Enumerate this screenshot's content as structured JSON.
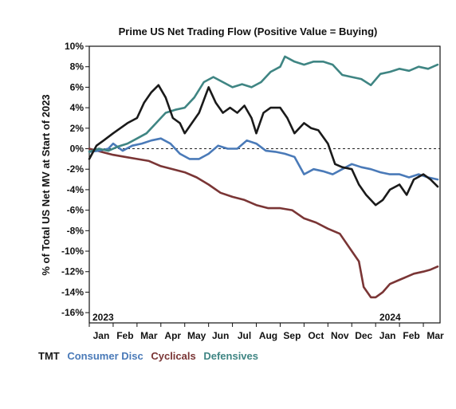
{
  "chart_data": {
    "type": "line",
    "title": "Prime US Net Trading Flow (Positive Value = Buying)",
    "ylabel": "% of Total US Net MV at Start of 2023",
    "xlabel": "",
    "ylim": [
      -17,
      10
    ],
    "yticks": [
      10,
      8,
      6,
      4,
      2,
      0,
      -2,
      -4,
      -6,
      -8,
      -10,
      -12,
      -14,
      -16
    ],
    "ytick_labels": [
      "10%",
      "8%",
      "6%",
      "4%",
      "2%",
      "0%",
      "-2%",
      "-4%",
      "-6%",
      "-8%",
      "-10%",
      "-12%",
      "-14%",
      "-16%"
    ],
    "month_labels": [
      "Jan",
      "Feb",
      "Mar",
      "Apr",
      "May",
      "Jun",
      "Jul",
      "Aug",
      "Sep",
      "Oct",
      "Nov",
      "Dec",
      "Jan",
      "Feb",
      "Mar"
    ],
    "year_labels": [
      "2023",
      "2024"
    ],
    "zero_line": "dashed",
    "grid": false,
    "legend_position": "bottom-left",
    "x_unit": "months since start of 2023",
    "xlim": [
      0,
      14.7
    ],
    "series": [
      {
        "name": "TMT",
        "color": "#1a1a1a",
        "x": [
          0,
          0.3,
          0.6,
          1.0,
          1.3,
          1.6,
          2.0,
          2.3,
          2.6,
          2.9,
          3.2,
          3.5,
          3.8,
          4.0,
          4.3,
          4.6,
          5.0,
          5.3,
          5.6,
          5.9,
          6.2,
          6.5,
          6.8,
          7.0,
          7.3,
          7.6,
          8.0,
          8.3,
          8.6,
          9.0,
          9.3,
          9.6,
          10.0,
          10.3,
          10.6,
          11.0,
          11.3,
          11.6,
          12.0,
          12.3,
          12.6,
          13.0,
          13.3,
          13.6,
          14.0,
          14.3,
          14.6
        ],
        "y": [
          -1.0,
          0.3,
          0.8,
          1.5,
          2.0,
          2.5,
          3.0,
          4.5,
          5.5,
          6.2,
          5.0,
          3.0,
          2.5,
          1.5,
          2.5,
          3.5,
          6.0,
          4.5,
          3.5,
          4.0,
          3.5,
          4.2,
          3.0,
          1.5,
          3.5,
          4.0,
          4.0,
          3.0,
          1.5,
          2.5,
          2.0,
          1.8,
          0.5,
          -1.5,
          -1.8,
          -2.0,
          -3.5,
          -4.5,
          -5.5,
          -5.0,
          -4.0,
          -3.5,
          -4.5,
          -3.0,
          -2.5,
          -3.0,
          -3.7
        ]
      },
      {
        "name": "Consumer Disc",
        "color": "#4a7ab8",
        "x": [
          0,
          0.4,
          0.8,
          1.0,
          1.4,
          1.8,
          2.2,
          2.6,
          3.0,
          3.4,
          3.8,
          4.2,
          4.6,
          5.0,
          5.4,
          5.8,
          6.2,
          6.6,
          7.0,
          7.4,
          7.8,
          8.2,
          8.6,
          9.0,
          9.4,
          9.8,
          10.2,
          10.6,
          11.0,
          11.4,
          11.8,
          12.2,
          12.6,
          13.0,
          13.4,
          13.8,
          14.2,
          14.6
        ],
        "y": [
          -0.3,
          -0.2,
          0.0,
          0.5,
          -0.2,
          0.3,
          0.5,
          0.8,
          1.0,
          0.5,
          -0.5,
          -1.0,
          -1.0,
          -0.5,
          0.3,
          0.0,
          0.0,
          0.8,
          0.5,
          -0.2,
          -0.3,
          -0.5,
          -0.8,
          -2.5,
          -2.0,
          -2.2,
          -2.5,
          -2.0,
          -1.5,
          -1.8,
          -2.0,
          -2.3,
          -2.5,
          -2.5,
          -2.8,
          -2.5,
          -2.8,
          -3.0
        ]
      },
      {
        "name": "Cyclicals",
        "color": "#7a3535",
        "x": [
          0,
          0.5,
          1.0,
          1.5,
          2.0,
          2.5,
          3.0,
          3.5,
          4.0,
          4.5,
          5.0,
          5.5,
          6.0,
          6.5,
          7.0,
          7.5,
          8.0,
          8.5,
          9.0,
          9.5,
          10.0,
          10.5,
          11.0,
          11.3,
          11.5,
          11.8,
          12.0,
          12.3,
          12.6,
          13.0,
          13.3,
          13.6,
          14.0,
          14.3,
          14.6
        ],
        "y": [
          0.0,
          -0.3,
          -0.6,
          -0.8,
          -1.0,
          -1.2,
          -1.7,
          -2.0,
          -2.3,
          -2.8,
          -3.5,
          -4.3,
          -4.7,
          -5.0,
          -5.5,
          -5.8,
          -5.8,
          -6.0,
          -6.8,
          -7.2,
          -7.8,
          -8.3,
          -10.0,
          -11.0,
          -13.5,
          -14.5,
          -14.5,
          -14.0,
          -13.2,
          -12.8,
          -12.5,
          -12.2,
          -12.0,
          -11.8,
          -11.5
        ]
      },
      {
        "name": "Defensives",
        "color": "#3f8583",
        "x": [
          0,
          0.4,
          0.8,
          1.2,
          1.6,
          2.0,
          2.4,
          2.8,
          3.2,
          3.6,
          4.0,
          4.4,
          4.8,
          5.2,
          5.6,
          6.0,
          6.4,
          6.8,
          7.2,
          7.6,
          8.0,
          8.2,
          8.6,
          9.0,
          9.4,
          9.8,
          10.2,
          10.6,
          11.0,
          11.4,
          11.8,
          12.2,
          12.6,
          13.0,
          13.4,
          13.8,
          14.2,
          14.6
        ],
        "y": [
          -0.3,
          0.0,
          -0.2,
          0.2,
          0.5,
          1.0,
          1.5,
          2.5,
          3.5,
          3.8,
          4.0,
          5.0,
          6.5,
          7.0,
          6.5,
          6.0,
          6.3,
          6.0,
          6.5,
          7.5,
          8.0,
          9.0,
          8.5,
          8.2,
          8.5,
          8.5,
          8.2,
          7.2,
          7.0,
          6.8,
          6.2,
          7.3,
          7.5,
          7.8,
          7.6,
          8.0,
          7.8,
          8.2
        ]
      }
    ]
  }
}
